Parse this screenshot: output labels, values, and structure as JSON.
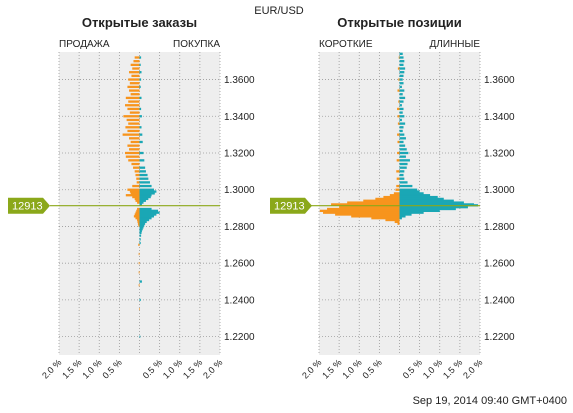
{
  "title": "EUR/USD",
  "timestamp": "Sep 19, 2014 09:40 GMT+0400",
  "current_price": 1.2913,
  "current_price_label": "12913",
  "colors": {
    "sell_short": "#f7941d",
    "buy_long": "#1aa7b5",
    "price_line": "#8ba81a",
    "plot_bg": "#eeeeee",
    "grid": "#9a9a9a"
  },
  "chart_data": [
    {
      "type": "bar",
      "orientation": "horizontal",
      "title": "Открытые заказы",
      "left_label": "ПРОДАЖА",
      "right_label": "ПОКУПКА",
      "ylim": [
        1.21,
        1.375
      ],
      "xlim": [
        -2.0,
        2.0
      ],
      "y_ticks": [
        1.22,
        1.24,
        1.26,
        1.28,
        1.3,
        1.32,
        1.34,
        1.36
      ],
      "y_tick_labels": [
        "1.2200",
        "1.2400",
        "1.2600",
        "1.2800",
        "1.3000",
        "1.3200",
        "1.3400",
        "1.3600"
      ],
      "x_tick_labels": [
        "2.0 %",
        "1.5 %",
        "1.0 %",
        "0.5 %",
        "",
        "0.5 %",
        "1.0 %",
        "1.5 %",
        "2.0 %"
      ],
      "series": [
        {
          "name": "ПРОДАЖА",
          "side": "left",
          "points": [
            [
              1.372,
              0.12
            ],
            [
              1.37,
              0.15
            ],
            [
              1.368,
              0.22
            ],
            [
              1.366,
              0.18
            ],
            [
              1.364,
              0.26
            ],
            [
              1.362,
              0.2
            ],
            [
              1.36,
              0.28
            ],
            [
              1.358,
              0.24
            ],
            [
              1.356,
              0.3
            ],
            [
              1.354,
              0.26
            ],
            [
              1.352,
              0.22
            ],
            [
              1.35,
              0.34
            ],
            [
              1.348,
              0.28
            ],
            [
              1.346,
              0.36
            ],
            [
              1.344,
              0.3
            ],
            [
              1.342,
              0.24
            ],
            [
              1.34,
              0.4
            ],
            [
              1.338,
              0.32
            ],
            [
              1.336,
              0.28
            ],
            [
              1.334,
              0.35
            ],
            [
              1.332,
              0.3
            ],
            [
              1.33,
              0.42
            ],
            [
              1.328,
              0.26
            ],
            [
              1.326,
              0.22
            ],
            [
              1.324,
              0.3
            ],
            [
              1.322,
              0.26
            ],
            [
              1.32,
              0.36
            ],
            [
              1.318,
              0.34
            ],
            [
              1.316,
              0.28
            ],
            [
              1.314,
              0.2
            ],
            [
              1.312,
              0.16
            ],
            [
              1.31,
              0.12
            ],
            [
              1.308,
              0.1
            ],
            [
              1.306,
              0.08
            ],
            [
              1.304,
              0.07
            ],
            [
              1.302,
              0.18
            ],
            [
              1.3,
              0.3
            ],
            [
              1.299,
              0.24
            ],
            [
              1.298,
              0.22
            ],
            [
              1.297,
              0.34
            ],
            [
              1.296,
              0.18
            ],
            [
              1.295,
              0.12
            ],
            [
              1.294,
              0.1
            ],
            [
              1.293,
              0.06
            ]
          ]
        },
        {
          "name": "ПОКУПКА",
          "side": "right",
          "points": [
            [
              1.372,
              0.04
            ],
            [
              1.368,
              0.03
            ],
            [
              1.364,
              0.05
            ],
            [
              1.36,
              0.04
            ],
            [
              1.356,
              0.03
            ],
            [
              1.35,
              0.05
            ],
            [
              1.344,
              0.04
            ],
            [
              1.34,
              0.06
            ],
            [
              1.334,
              0.05
            ],
            [
              1.33,
              0.07
            ],
            [
              1.326,
              0.08
            ],
            [
              1.32,
              0.1
            ],
            [
              1.316,
              0.12
            ],
            [
              1.312,
              0.14
            ],
            [
              1.31,
              0.16
            ],
            [
              1.308,
              0.2
            ],
            [
              1.306,
              0.22
            ],
            [
              1.304,
              0.26
            ],
            [
              1.302,
              0.3
            ],
            [
              1.3,
              0.36
            ],
            [
              1.299,
              0.42
            ],
            [
              1.298,
              0.38
            ],
            [
              1.297,
              0.3
            ],
            [
              1.296,
              0.28
            ],
            [
              1.295,
              0.22
            ],
            [
              1.294,
              0.16
            ],
            [
              1.293,
              0.1
            ],
            [
              1.292,
              0.06
            ]
          ]
        },
        {
          "name": "ПРОДАЖА",
          "side": "left",
          "points": [
            [
              1.2895,
              0.06
            ],
            [
              1.2885,
              0.08
            ],
            [
              1.2875,
              0.1
            ],
            [
              1.2865,
              0.12
            ],
            [
              1.2855,
              0.14
            ],
            [
              1.2845,
              0.1
            ],
            [
              1.2835,
              0.06
            ],
            [
              1.2825,
              0.05
            ],
            [
              1.2815,
              0.04
            ],
            [
              1.2805,
              0.03
            ]
          ]
        },
        {
          "name": "ПОКУПКА",
          "side": "right",
          "points": [
            [
              1.2895,
              0.3
            ],
            [
              1.2885,
              0.46
            ],
            [
              1.2875,
              0.5
            ],
            [
              1.2865,
              0.42
            ],
            [
              1.2855,
              0.36
            ],
            [
              1.2845,
              0.3
            ],
            [
              1.2835,
              0.24
            ],
            [
              1.2825,
              0.18
            ],
            [
              1.2815,
              0.14
            ],
            [
              1.2805,
              0.12
            ],
            [
              1.2795,
              0.1
            ],
            [
              1.2785,
              0.08
            ],
            [
              1.2775,
              0.06
            ],
            [
              1.2765,
              0.05
            ],
            [
              1.275,
              0.04
            ],
            [
              1.273,
              0.03
            ],
            [
              1.271,
              0.03
            ],
            [
              1.25,
              0.06
            ],
            [
              1.24,
              0.03
            ],
            [
              1.22,
              0.02
            ]
          ]
        },
        {
          "name": "ПРОДАЖА",
          "side": "left",
          "points": [
            [
              1.27,
              0.03
            ],
            [
              1.265,
              0.02
            ],
            [
              1.26,
              0.02
            ],
            [
              1.255,
              0.02
            ],
            [
              1.248,
              0.02
            ],
            [
              1.235,
              0.01
            ]
          ]
        }
      ]
    },
    {
      "type": "bar",
      "orientation": "horizontal",
      "title": "Открытые позиции",
      "left_label": "КОРОТКИЕ",
      "right_label": "ДЛИННЫЕ",
      "ylim": [
        1.21,
        1.375
      ],
      "xlim": [
        -2.0,
        2.0
      ],
      "y_ticks": [
        1.22,
        1.24,
        1.26,
        1.28,
        1.3,
        1.32,
        1.34,
        1.36
      ],
      "y_tick_labels": [
        "1.2200",
        "1.2400",
        "1.2600",
        "1.2800",
        "1.3000",
        "1.3200",
        "1.3400",
        "1.3600"
      ],
      "x_tick_labels": [
        "2.0 %",
        "1.5 %",
        "1.0 %",
        "0.5 %",
        "",
        "0.5 %",
        "1.0 %",
        "1.5 %",
        "2.0 %"
      ],
      "series": [
        {
          "name": "КОРОТКИЕ",
          "side": "left",
          "points": [
            [
              1.372,
              0.02
            ],
            [
              1.366,
              0.04
            ],
            [
              1.36,
              0.03
            ],
            [
              1.354,
              0.05
            ],
            [
              1.348,
              0.03
            ],
            [
              1.344,
              0.06
            ],
            [
              1.34,
              0.05
            ],
            [
              1.336,
              0.04
            ],
            [
              1.33,
              0.06
            ],
            [
              1.326,
              0.05
            ],
            [
              1.32,
              0.06
            ],
            [
              1.316,
              0.07
            ],
            [
              1.31,
              0.08
            ],
            [
              1.306,
              0.07
            ],
            [
              1.302,
              0.08
            ],
            [
              1.3,
              0.1
            ],
            [
              1.298,
              0.14
            ],
            [
              1.297,
              0.24
            ],
            [
              1.296,
              0.4
            ],
            [
              1.295,
              0.6
            ],
            [
              1.294,
              0.9
            ],
            [
              1.293,
              1.3
            ],
            [
              1.292,
              1.7
            ],
            [
              1.291,
              1.2
            ],
            [
              1.29,
              0.6
            ],
            [
              1.289,
              0.3
            ],
            [
              1.288,
              0.15
            ],
            [
              1.287,
              0.08
            ]
          ]
        },
        {
          "name": "ДЛИННЫЕ",
          "side": "right",
          "points": [
            [
              1.374,
              0.08
            ],
            [
              1.372,
              0.1
            ],
            [
              1.37,
              0.12
            ],
            [
              1.368,
              0.1
            ],
            [
              1.366,
              0.14
            ],
            [
              1.364,
              0.12
            ],
            [
              1.362,
              0.1
            ],
            [
              1.36,
              0.08
            ],
            [
              1.358,
              0.1
            ],
            [
              1.356,
              0.06
            ],
            [
              1.354,
              0.12
            ],
            [
              1.352,
              0.08
            ],
            [
              1.35,
              0.14
            ],
            [
              1.348,
              0.1
            ],
            [
              1.346,
              0.06
            ],
            [
              1.344,
              0.1
            ],
            [
              1.342,
              0.08
            ],
            [
              1.34,
              0.12
            ],
            [
              1.338,
              0.06
            ],
            [
              1.336,
              0.14
            ],
            [
              1.334,
              0.1
            ],
            [
              1.332,
              0.08
            ],
            [
              1.33,
              0.12
            ],
            [
              1.328,
              0.16
            ],
            [
              1.326,
              0.1
            ],
            [
              1.324,
              0.14
            ],
            [
              1.322,
              0.18
            ],
            [
              1.32,
              0.22
            ],
            [
              1.318,
              0.16
            ],
            [
              1.316,
              0.26
            ],
            [
              1.314,
              0.2
            ],
            [
              1.312,
              0.18
            ],
            [
              1.31,
              0.12
            ],
            [
              1.308,
              0.1
            ],
            [
              1.306,
              0.12
            ],
            [
              1.304,
              0.2
            ],
            [
              1.302,
              0.32
            ],
            [
              1.3,
              0.44
            ],
            [
              1.299,
              0.5
            ],
            [
              1.298,
              0.6
            ],
            [
              1.297,
              0.76
            ],
            [
              1.296,
              0.95
            ],
            [
              1.295,
              1.1
            ],
            [
              1.294,
              1.35
            ],
            [
              1.293,
              1.6
            ],
            [
              1.292,
              1.85
            ],
            [
              1.2915,
              1.95
            ],
            [
              1.2905,
              1.7
            ],
            [
              1.2895,
              1.4
            ],
            [
              1.2885,
              1.0
            ],
            [
              1.2875,
              0.6
            ],
            [
              1.2865,
              0.3
            ],
            [
              1.2855,
              0.15
            ],
            [
              1.2845,
              0.06
            ]
          ]
        },
        {
          "name": "КОРОТКИЕ",
          "side": "left",
          "points": [
            [
              1.2905,
              1.5
            ],
            [
              1.2895,
              1.8
            ],
            [
              1.2885,
              1.98
            ],
            [
              1.2875,
              1.9
            ],
            [
              1.2865,
              1.6
            ],
            [
              1.2855,
              1.2
            ],
            [
              1.2845,
              0.7
            ],
            [
              1.2835,
              0.35
            ],
            [
              1.2825,
              0.12
            ],
            [
              1.2815,
              0.05
            ]
          ]
        }
      ]
    }
  ]
}
